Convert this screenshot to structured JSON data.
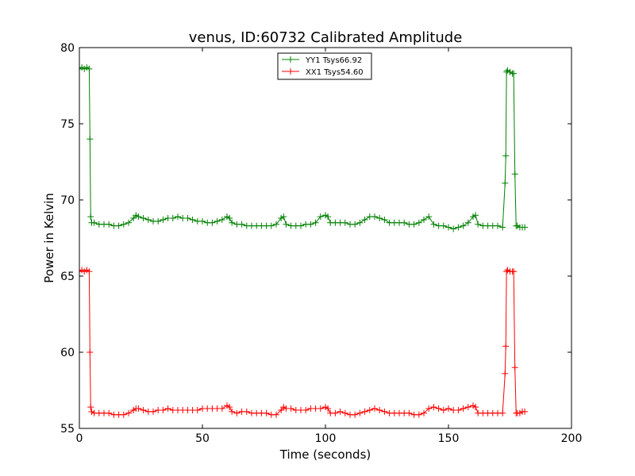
{
  "chart_data": {
    "type": "line",
    "title": "venus, ID:60732 Calibrated Amplitude",
    "xlabel": "Time (seconds)",
    "ylabel": "Power in Kelvin",
    "xlim": [
      0,
      200
    ],
    "ylim": [
      55,
      80
    ],
    "xticks": [
      0,
      50,
      100,
      150,
      200
    ],
    "yticks": [
      55,
      60,
      65,
      70,
      75,
      80
    ],
    "grid": false,
    "legend_position": "top-center",
    "marker": "plus",
    "series": [
      {
        "name": "YY1 Tsys66.92",
        "color": "#008000",
        "x": [
          0,
          1,
          2,
          3,
          4,
          4.3,
          4.6,
          5,
          6,
          8,
          10,
          12,
          14,
          16,
          18,
          20,
          22,
          23,
          24,
          26,
          28,
          30,
          32,
          34,
          36,
          38,
          40,
          42,
          44,
          46,
          48,
          50,
          52,
          54,
          56,
          58,
          60,
          61,
          62,
          64,
          66,
          68,
          70,
          72,
          74,
          76,
          78,
          80,
          82,
          83,
          84,
          86,
          88,
          90,
          92,
          94,
          96,
          98,
          100,
          101,
          102,
          104,
          106,
          108,
          110,
          112,
          114,
          116,
          118,
          120,
          122,
          124,
          126,
          128,
          130,
          132,
          134,
          136,
          138,
          140,
          142,
          144,
          146,
          148,
          150,
          152,
          154,
          156,
          158,
          160,
          161,
          162,
          164,
          166,
          168,
          170,
          172,
          173,
          173.3,
          173.6,
          174,
          175,
          176,
          176.5,
          177,
          177.5,
          178,
          179,
          180,
          181
        ],
        "y": [
          78.6,
          78.7,
          78.6,
          78.7,
          78.6,
          74,
          68.9,
          68.5,
          68.5,
          68.4,
          68.4,
          68.4,
          68.3,
          68.3,
          68.4,
          68.5,
          68.8,
          69.0,
          68.9,
          68.8,
          68.7,
          68.6,
          68.6,
          68.7,
          68.8,
          68.8,
          68.9,
          68.8,
          68.8,
          68.7,
          68.6,
          68.6,
          68.5,
          68.5,
          68.6,
          68.7,
          68.9,
          68.8,
          68.5,
          68.4,
          68.4,
          68.3,
          68.3,
          68.3,
          68.3,
          68.3,
          68.3,
          68.4,
          68.8,
          68.9,
          68.4,
          68.3,
          68.3,
          68.3,
          68.4,
          68.4,
          68.5,
          68.9,
          69.0,
          68.9,
          68.5,
          68.5,
          68.5,
          68.5,
          68.4,
          68.4,
          68.5,
          68.7,
          68.9,
          68.9,
          68.8,
          68.7,
          68.5,
          68.5,
          68.5,
          68.5,
          68.4,
          68.4,
          68.5,
          68.7,
          68.9,
          68.4,
          68.3,
          68.3,
          68.2,
          68.1,
          68.2,
          68.3,
          68.5,
          68.9,
          69.0,
          68.4,
          68.3,
          68.3,
          68.3,
          68.3,
          68.2,
          71.1,
          72.9,
          78.4,
          78.5,
          78.4,
          78.3,
          78.3,
          71.7,
          68.3,
          68.3,
          68.2,
          68.2,
          68.2
        ]
      },
      {
        "name": "XX1 Tsys54.60",
        "color": "#ff0000",
        "x": [
          0,
          1,
          2,
          3,
          4,
          4.3,
          4.6,
          5,
          6,
          8,
          10,
          12,
          14,
          16,
          18,
          20,
          22,
          23,
          24,
          26,
          28,
          30,
          32,
          34,
          36,
          38,
          40,
          42,
          44,
          46,
          48,
          50,
          52,
          54,
          56,
          58,
          60,
          61,
          62,
          64,
          66,
          68,
          70,
          72,
          74,
          76,
          78,
          80,
          82,
          83,
          84,
          86,
          88,
          90,
          92,
          94,
          96,
          98,
          100,
          101,
          102,
          104,
          106,
          108,
          110,
          112,
          114,
          116,
          118,
          120,
          122,
          124,
          126,
          128,
          130,
          132,
          134,
          136,
          138,
          140,
          142,
          144,
          146,
          148,
          150,
          152,
          154,
          156,
          158,
          160,
          161,
          162,
          164,
          166,
          168,
          170,
          172,
          173,
          173.3,
          173.6,
          174,
          175,
          176,
          176.5,
          177,
          177.5,
          178,
          179,
          180,
          181
        ],
        "y": [
          65.3,
          65.4,
          65.3,
          65.4,
          65.3,
          60,
          56.4,
          56.1,
          56.0,
          56.0,
          56.0,
          56.0,
          55.9,
          55.9,
          55.9,
          56.0,
          56.2,
          56.3,
          56.3,
          56.2,
          56.1,
          56.1,
          56.2,
          56.2,
          56.3,
          56.2,
          56.2,
          56.2,
          56.2,
          56.2,
          56.2,
          56.3,
          56.3,
          56.3,
          56.3,
          56.3,
          56.5,
          56.4,
          56.1,
          56.0,
          56.1,
          56.1,
          56.0,
          56.0,
          56.0,
          56.0,
          55.9,
          55.9,
          56.2,
          56.4,
          56.3,
          56.3,
          56.2,
          56.2,
          56.2,
          56.3,
          56.3,
          56.3,
          56.4,
          56.3,
          56.0,
          56.0,
          56.1,
          56.0,
          55.9,
          55.9,
          56.0,
          56.1,
          56.2,
          56.3,
          56.2,
          56.1,
          56.0,
          56.0,
          56.0,
          56.0,
          56.0,
          55.9,
          55.9,
          56.0,
          56.3,
          56.4,
          56.3,
          56.2,
          56.3,
          56.2,
          56.2,
          56.3,
          56.4,
          56.5,
          56.4,
          56.0,
          56.0,
          56.0,
          56.0,
          56.0,
          56.0,
          58.6,
          60.4,
          65.3,
          65.4,
          65.3,
          65.3,
          65.3,
          59.0,
          56.0,
          56.0,
          56.0,
          56.1,
          56.1
        ]
      }
    ]
  }
}
